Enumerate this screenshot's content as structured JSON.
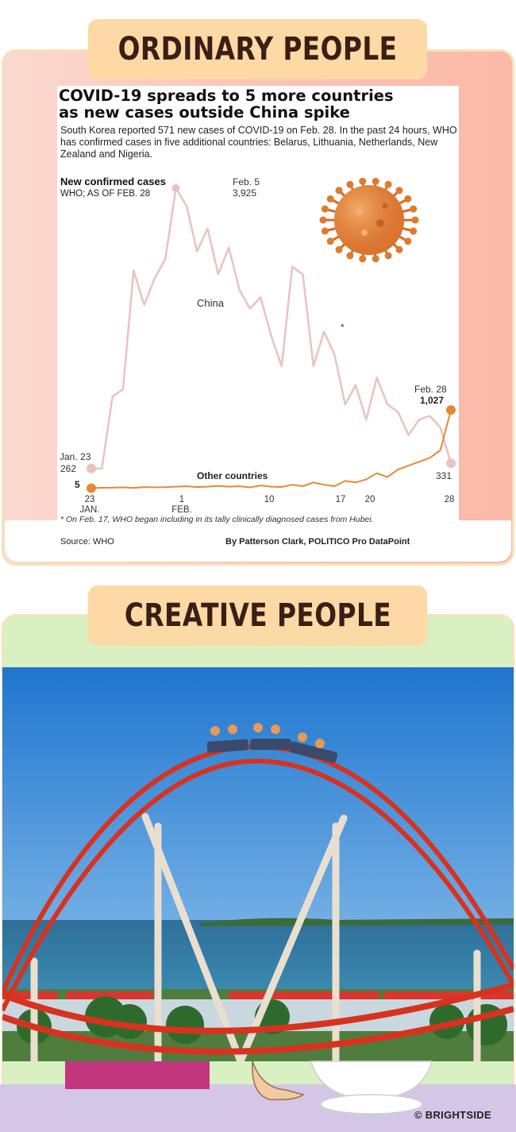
{
  "banners": {
    "top": "ORDINARY PEOPLE",
    "bottom": "CREATIVE PEOPLE"
  },
  "article": {
    "headline_line1": "COVID-19 spreads to 5 more countries",
    "headline_line2": "as new cases outside China spike",
    "dek": "South Korea reported 571 new cases of COVID-19 on Feb. 28. In the past 24 hours, WHO has confirmed cases in five additional countries: Belarus, Lithuania, Netherlands, New Zealand and Nigeria.",
    "subtitle": "New confirmed cases",
    "source_line": "WHO; AS OF FEB. 28",
    "footnote": "* On Feb. 17, WHO  began including in its tally clinically diagnosed cases from Hubei.",
    "source": "Source:  WHO",
    "byline": "By Patterson Clark, POLITICO Pro DataPoint"
  },
  "chart_data": {
    "type": "line",
    "x": [
      23,
      24,
      25,
      26,
      27,
      28,
      29,
      30,
      31,
      32,
      33,
      34,
      35,
      36,
      37,
      38,
      39,
      40,
      41,
      42,
      43,
      44,
      45,
      46,
      47,
      48,
      49,
      50,
      51,
      52,
      53,
      54,
      55,
      56,
      57
    ],
    "x_tick_labels": [
      {
        "value": 23,
        "label": "23",
        "sublabel": "JAN."
      },
      {
        "value": 32,
        "label": "1",
        "sublabel": "FEB."
      },
      {
        "value": 41,
        "label": "10"
      },
      {
        "value": 48,
        "label": "17"
      },
      {
        "value": 51,
        "label": "20"
      },
      {
        "value": 59,
        "label": "28"
      }
    ],
    "series": [
      {
        "name": "China",
        "color": "#e8c4bd",
        "values": [
          262,
          262,
          1200,
          1300,
          2850,
          2400,
          2750,
          3000,
          3925,
          3700,
          3100,
          3400,
          2800,
          3150,
          2600,
          2350,
          2500,
          2000,
          1600,
          2900,
          2800,
          1600,
          2050,
          1750,
          1100,
          1350,
          900,
          1450,
          1100,
          1000,
          700,
          900,
          950,
          800,
          331
        ]
      },
      {
        "name": "Other countries",
        "color": "#e38a35",
        "values": [
          5,
          10,
          12,
          15,
          8,
          20,
          15,
          18,
          25,
          30,
          20,
          25,
          35,
          25,
          30,
          15,
          40,
          25,
          20,
          50,
          30,
          80,
          50,
          30,
          100,
          80,
          120,
          200,
          150,
          250,
          300,
          350,
          400,
          500,
          1027
        ]
      }
    ],
    "annotations": [
      {
        "text": "Jan. 23",
        "value": "262"
      },
      {
        "text": "Feb. 5",
        "value": "3,925"
      },
      {
        "text": "Feb. 28",
        "value": "1,027"
      },
      {
        "text": "China"
      },
      {
        "text": "*"
      },
      {
        "text": "331"
      },
      {
        "text": "5"
      },
      {
        "text": "Other countries"
      }
    ]
  },
  "brand": "© BRIGHTSIDE"
}
